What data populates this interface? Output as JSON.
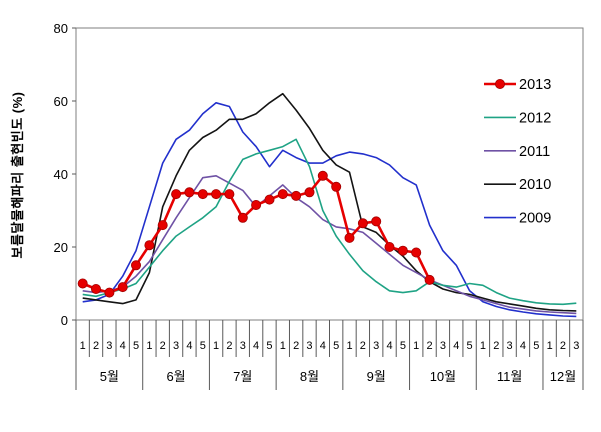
{
  "chart_data": {
    "type": "line",
    "title": "",
    "ylabel": "보름달물해파리 출현빈도 (%)",
    "xlabel": "",
    "ylim": [
      0,
      80
    ],
    "yticks": [
      0,
      20,
      40,
      60,
      80
    ],
    "grid": false,
    "legend_position": "right-inside",
    "axis_color": "#595959",
    "frame_color": "#7f7f7f",
    "x_axis": {
      "months": [
        {
          "label": "5월",
          "weeks": 5
        },
        {
          "label": "6월",
          "weeks": 5
        },
        {
          "label": "7월",
          "weeks": 5
        },
        {
          "label": "8월",
          "weeks": 5
        },
        {
          "label": "9월",
          "weeks": 5
        },
        {
          "label": "10월",
          "weeks": 5
        },
        {
          "label": "11월",
          "weeks": 5
        },
        {
          "label": "12월",
          "weeks": 3
        }
      ]
    },
    "series": [
      {
        "name": "2013",
        "color": "#e60000",
        "marker": true,
        "line_width": 2.6,
        "values": [
          10,
          8.5,
          7.5,
          9,
          15,
          20.5,
          26,
          34.5,
          35,
          34.5,
          34.5,
          34.5,
          28,
          31.5,
          33,
          34.5,
          34,
          35,
          39.5,
          36.5,
          22.5,
          26.5,
          27,
          20,
          19,
          18.5,
          11,
          null,
          null,
          null,
          null,
          null,
          null,
          null,
          null,
          null,
          null,
          null
        ]
      },
      {
        "name": "2012",
        "color": "#1fa385",
        "marker": false,
        "line_width": 1.6,
        "values": [
          7,
          6.5,
          7.5,
          8.5,
          10,
          14.5,
          19,
          23,
          25.5,
          28,
          31,
          38,
          44,
          45.5,
          46.5,
          47.5,
          49.5,
          42,
          30,
          23,
          18,
          13.5,
          10.5,
          8,
          7.5,
          8,
          10.5,
          9.5,
          9,
          10,
          9.5,
          7.5,
          6,
          5.3,
          4.7,
          4.4,
          4.3,
          4.6
        ]
      },
      {
        "name": "2011",
        "color": "#6f52a5",
        "marker": false,
        "line_width": 1.6,
        "values": [
          8,
          7.5,
          8,
          9,
          12,
          16,
          22,
          28,
          33.5,
          39,
          39.5,
          37.5,
          35.5,
          31,
          34,
          37,
          33.5,
          31,
          27.5,
          25.5,
          25,
          24,
          21,
          18,
          15,
          13,
          11,
          9.5,
          8,
          6.5,
          5.5,
          4.5,
          3.5,
          3,
          2.5,
          2.2,
          2,
          1.8
        ]
      },
      {
        "name": "2010",
        "color": "#141414",
        "marker": false,
        "line_width": 1.6,
        "values": [
          6,
          5.5,
          5,
          4.5,
          5.5,
          13,
          31,
          39.5,
          46.5,
          50,
          52,
          55,
          55,
          56.5,
          59.5,
          62,
          57.5,
          52.5,
          46.5,
          42.5,
          40.5,
          25.5,
          24,
          20.5,
          17.5,
          13.5,
          10.5,
          8.5,
          7.5,
          7,
          6,
          5,
          4.4,
          3.8,
          3.2,
          2.8,
          2.6,
          2.5
        ]
      },
      {
        "name": "2009",
        "color": "#2230cc",
        "marker": false,
        "line_width": 1.6,
        "values": [
          5,
          5.5,
          7,
          12,
          19,
          31,
          43,
          49.5,
          52,
          56.5,
          59.5,
          58.5,
          51.5,
          47.5,
          42,
          46.5,
          44.5,
          43,
          43,
          45,
          46,
          45.5,
          44.5,
          42.5,
          39,
          37,
          26,
          19,
          15,
          8,
          5,
          3.7,
          2.8,
          2.2,
          1.7,
          1.4,
          1.1,
          1
        ]
      }
    ]
  }
}
